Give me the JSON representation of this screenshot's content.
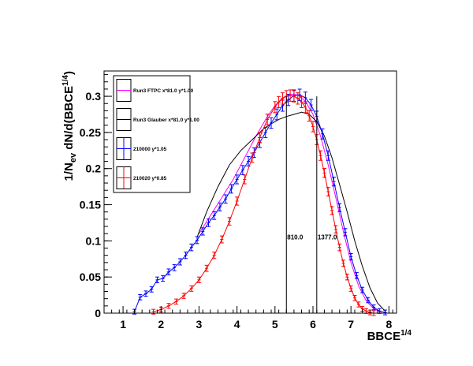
{
  "chart_data": {
    "type": "line",
    "xlabel": "BBCE",
    "xlabel_sup": "1/4",
    "ylabel_parts": {
      "pre": "1/N",
      "sub": "ev",
      "mid": " dN/d(BBCE",
      "sup": "1/4",
      "post": ")"
    },
    "xlim": [
      0.5,
      8.2
    ],
    "ylim": [
      0,
      0.335
    ],
    "x_ticks": [
      1,
      2,
      3,
      4,
      5,
      6,
      7,
      8
    ],
    "x_tick_labels": [
      "1",
      "2",
      "3",
      "4",
      "5",
      "6",
      "7",
      "8"
    ],
    "y_ticks": [
      0,
      0.05,
      0.1,
      0.15,
      0.2,
      0.25,
      0.3
    ],
    "y_tick_labels": [
      "0",
      "0.05",
      "0.1",
      "0.15",
      "0.2",
      "0.25",
      "0.3"
    ],
    "grid": false,
    "legend_position": "top-left",
    "series": [
      {
        "name": "Run3 FTPC x*81.0 y*1.00",
        "color": "#ff00ff",
        "style": "line",
        "x": [
          3.0,
          3.3,
          3.6,
          3.9,
          4.2,
          4.5,
          4.8,
          5.0,
          5.2,
          5.4,
          5.6,
          5.8,
          6.0,
          6.2,
          6.4,
          6.6,
          6.8,
          7.0,
          7.2,
          7.4,
          7.6,
          7.8
        ],
        "y": [
          0.11,
          0.135,
          0.16,
          0.185,
          0.215,
          0.245,
          0.272,
          0.287,
          0.298,
          0.303,
          0.302,
          0.293,
          0.275,
          0.245,
          0.205,
          0.16,
          0.113,
          0.07,
          0.038,
          0.017,
          0.006,
          0.001
        ]
      },
      {
        "name": "Run3 Glauber x*81.0 y*1.00",
        "color": "#000000",
        "style": "line",
        "x": [
          2.95,
          3.2,
          3.5,
          3.8,
          4.1,
          4.4,
          4.7,
          4.9,
          5.1,
          5.3,
          5.5,
          5.7,
          5.9,
          6.1,
          6.3,
          6.5,
          6.7,
          6.9,
          7.1,
          7.3,
          7.5,
          7.7,
          7.9
        ],
        "y": [
          0.105,
          0.14,
          0.175,
          0.205,
          0.225,
          0.24,
          0.255,
          0.262,
          0.268,
          0.272,
          0.275,
          0.278,
          0.275,
          0.265,
          0.245,
          0.215,
          0.178,
          0.14,
          0.1,
          0.065,
          0.035,
          0.014,
          0.003
        ]
      },
      {
        "name": "210000 y*1.05",
        "color": "#0000ff",
        "style": "errorbar",
        "x": [
          1.3,
          1.45,
          1.6,
          1.75,
          1.9,
          2.05,
          2.2,
          2.35,
          2.5,
          2.65,
          2.8,
          2.95,
          3.1,
          3.25,
          3.4,
          3.55,
          3.7,
          3.85,
          4.0,
          4.15,
          4.3,
          4.45,
          4.6,
          4.75,
          4.9,
          5.05,
          5.2,
          5.35,
          5.5,
          5.65,
          5.8,
          5.95,
          6.1,
          6.25,
          6.4,
          6.55,
          6.7,
          6.85,
          7.0,
          7.15,
          7.3,
          7.45,
          7.6,
          7.75,
          7.9
        ],
        "y": [
          0.002,
          0.022,
          0.027,
          0.033,
          0.046,
          0.048,
          0.057,
          0.063,
          0.071,
          0.08,
          0.091,
          0.101,
          0.113,
          0.125,
          0.135,
          0.147,
          0.158,
          0.172,
          0.185,
          0.198,
          0.21,
          0.222,
          0.236,
          0.25,
          0.263,
          0.275,
          0.287,
          0.295,
          0.301,
          0.302,
          0.298,
          0.288,
          0.272,
          0.248,
          0.218,
          0.182,
          0.146,
          0.112,
          0.078,
          0.052,
          0.032,
          0.018,
          0.008,
          0.003,
          0.001
        ]
      },
      {
        "name": "210020 y*0.85",
        "color": "#ff0000",
        "style": "errorbar",
        "x": [
          1.8,
          2.0,
          2.2,
          2.4,
          2.6,
          2.8,
          3.0,
          3.2,
          3.4,
          3.6,
          3.8,
          4.0,
          4.2,
          4.4,
          4.6,
          4.8,
          5.0,
          5.1,
          5.2,
          5.3,
          5.4,
          5.5,
          5.6,
          5.7,
          5.8,
          5.9,
          6.0,
          6.1,
          6.2,
          6.3,
          6.4,
          6.5,
          6.6,
          6.7,
          6.8,
          6.9,
          7.0,
          7.1,
          7.2,
          7.3,
          7.4,
          7.5,
          7.6
        ],
        "y": [
          0.002,
          0.005,
          0.01,
          0.016,
          0.024,
          0.034,
          0.046,
          0.062,
          0.08,
          0.102,
          0.127,
          0.155,
          0.185,
          0.215,
          0.243,
          0.268,
          0.285,
          0.292,
          0.297,
          0.3,
          0.301,
          0.3,
          0.297,
          0.292,
          0.285,
          0.273,
          0.258,
          0.24,
          0.218,
          0.194,
          0.168,
          0.142,
          0.116,
          0.091,
          0.069,
          0.05,
          0.034,
          0.021,
          0.012,
          0.006,
          0.003,
          0.001,
          0.0
        ]
      }
    ],
    "annotations": [
      {
        "x": 5.3,
        "text": "810.0",
        "label_y": 0.102
      },
      {
        "x": 6.1,
        "text": "1377.0",
        "label_y": 0.102
      }
    ]
  }
}
